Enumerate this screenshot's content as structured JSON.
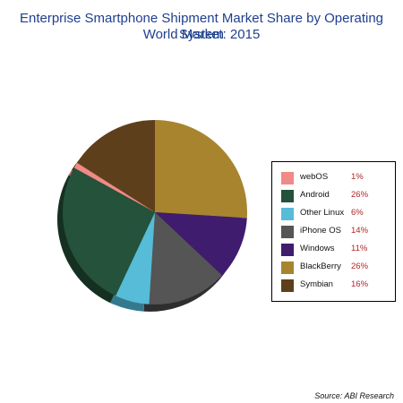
{
  "title_line1": "Enterprise Smartphone Shipment Market Share by Operating System",
  "title_line2": "World Market: 2015",
  "source": "Source: ABI Research",
  "chart_data": {
    "type": "pie",
    "title": "Enterprise Smartphone Shipment Market Share by Operating System",
    "subtitle": "World Market: 2015",
    "slices": [
      {
        "label": "webOS",
        "value": 1,
        "value_label": "1%",
        "color": "#f08a87",
        "side": "#b0605c"
      },
      {
        "label": "Android",
        "value": 26,
        "value_label": "26%",
        "color": "#24523a",
        "side": "#153020"
      },
      {
        "label": "Other Linux",
        "value": 6,
        "value_label": "6%",
        "color": "#56bcd8",
        "side": "#347a8e"
      },
      {
        "label": "iPhone OS",
        "value": 14,
        "value_label": "14%",
        "color": "#555555",
        "side": "#2e2e2e"
      },
      {
        "label": "Windows",
        "value": 11,
        "value_label": "11%",
        "color": "#3f1c6e",
        "side": "#25104a"
      },
      {
        "label": "BlackBerry",
        "value": 26,
        "value_label": "26%",
        "color": "#a8842f",
        "side": "#6d5518"
      },
      {
        "label": "Symbian",
        "value": 16,
        "value_label": "16%",
        "color": "#5e3f1c",
        "side": "#3b270f"
      }
    ],
    "legend_position": "right"
  }
}
